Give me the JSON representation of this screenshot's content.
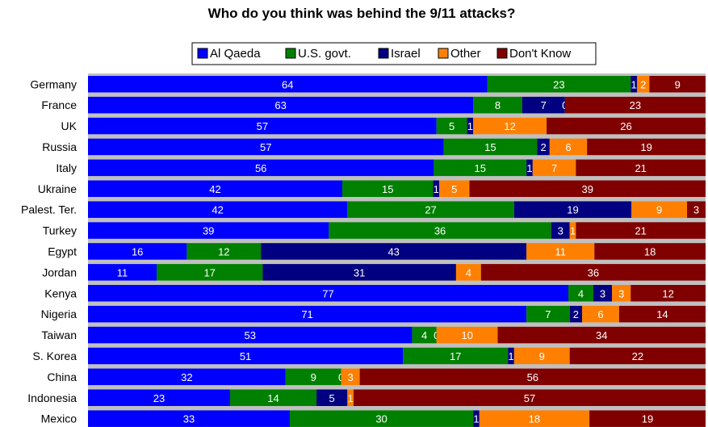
{
  "chart_data": {
    "type": "bar",
    "orientation": "horizontal",
    "stacked": true,
    "normalized_to": 100,
    "title": "Who do you think was behind the 9/11 attacks?",
    "xlabel": "",
    "ylabel": "",
    "xlim": [
      0,
      100
    ],
    "grid": false,
    "legend_position": "top",
    "categories": [
      "Germany",
      "France",
      "UK",
      "Russia",
      "Italy",
      "Ukraine",
      "Palest. Ter.",
      "Turkey",
      "Egypt",
      "Jordan",
      "Kenya",
      "Nigeria",
      "Taiwan",
      "S. Korea",
      "China",
      "Indonesia",
      "Mexico"
    ],
    "series": [
      {
        "name": "Al Qaeda",
        "color": "#0000ff",
        "values": [
          64,
          63,
          57,
          57,
          56,
          42,
          42,
          39,
          16,
          11,
          77,
          71,
          53,
          51,
          32,
          23,
          33
        ]
      },
      {
        "name": "U.S. govt.",
        "color": "#008000",
        "values": [
          23,
          8,
          5,
          15,
          15,
          15,
          27,
          36,
          12,
          17,
          4,
          7,
          4,
          17,
          9,
          14,
          30
        ]
      },
      {
        "name": "Israel",
        "color": "#000080",
        "values": [
          1,
          7,
          1,
          2,
          1,
          1,
          19,
          3,
          43,
          31,
          3,
          2,
          0,
          1,
          0,
          5,
          1
        ]
      },
      {
        "name": "Other",
        "color": "#ff8000",
        "values": [
          2,
          0,
          12,
          6,
          7,
          5,
          9,
          1,
          11,
          4,
          3,
          6,
          10,
          9,
          3,
          1,
          18
        ]
      },
      {
        "name": "Don't Know",
        "color": "#800000",
        "values": [
          9,
          23,
          26,
          19,
          21,
          39,
          3,
          21,
          18,
          36,
          12,
          14,
          34,
          22,
          56,
          57,
          19
        ]
      }
    ],
    "colors": {
      "background": "#ffffff",
      "plot_background": "#c0c0c0"
    }
  }
}
